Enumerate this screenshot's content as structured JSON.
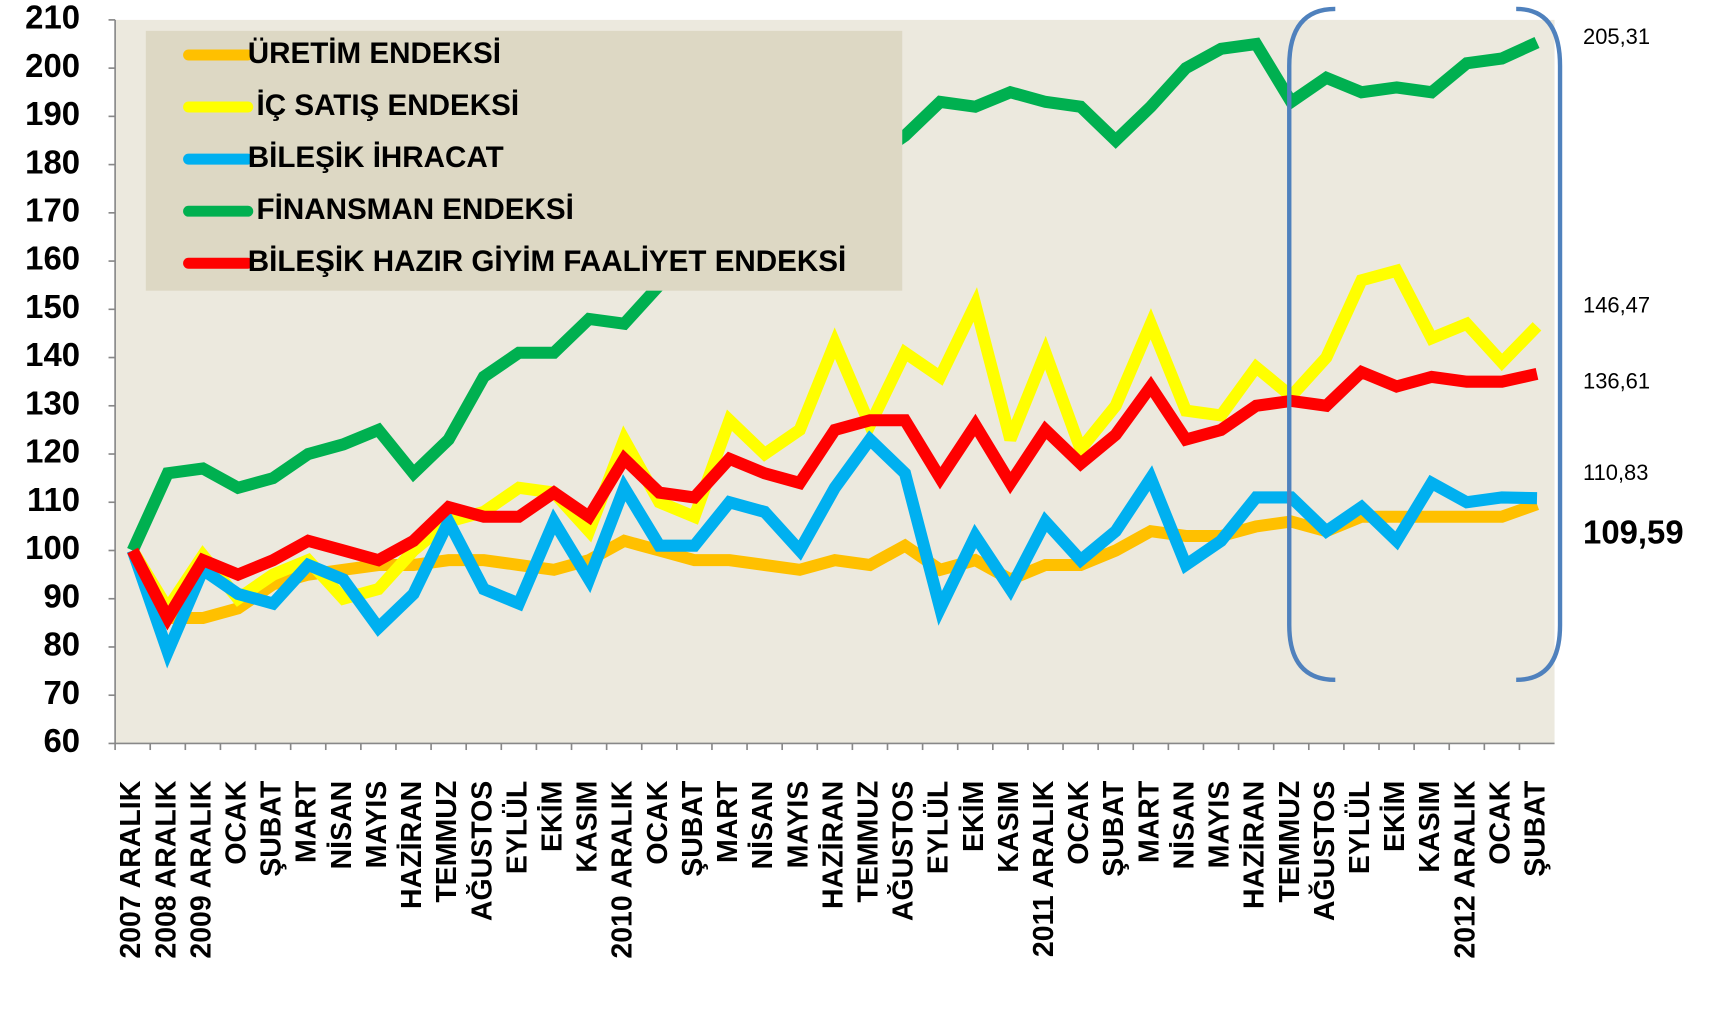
{
  "chart_data": {
    "type": "line",
    "categories": [
      "2007 ARALIK",
      "2008 ARALIK",
      "2009 ARALIK",
      "OCAK",
      "ŞUBAT",
      "MART",
      "NİSAN",
      "MAYIS",
      "HAZİRAN",
      "TEMMUZ",
      "AĞUSTOS",
      "EYLÜL",
      "EKİM",
      "KASIM",
      "2010 ARALIK",
      "OCAK",
      "ŞUBAT",
      "MART",
      "NİSAN",
      "MAYIS",
      "HAZİRAN",
      "TEMMUZ",
      "AĞUSTOS",
      "EYLÜL",
      "EKİM",
      "KASIM",
      "2011 ARALIK",
      "OCAK",
      "ŞUBAT",
      "MART",
      "NİSAN",
      "MAYIS",
      "HAZİRAN",
      "TEMMUZ",
      "AĞUSTOS",
      "EYLÜL",
      "EKİM",
      "KASIM",
      "2012 ARALIK",
      "OCAK",
      "ŞUBAT"
    ],
    "series": [
      {
        "name": "ÜRETİM ENDEKSİ",
        "color": "#FFC000",
        "values": [
          100,
          86,
          86,
          88,
          93,
          95,
          96,
          97,
          97,
          98,
          98,
          97,
          96,
          98,
          102,
          100,
          98,
          98,
          97,
          96,
          98,
          97,
          101,
          96,
          98,
          94,
          97,
          97,
          100,
          104,
          103,
          103,
          105,
          106,
          104,
          107,
          107,
          107,
          107,
          107,
          109.59
        ],
        "value_labels": [
          null,
          null,
          null,
          null,
          null,
          null,
          null,
          null,
          null,
          null,
          null,
          null,
          null,
          null,
          null,
          null,
          null,
          null,
          null,
          null,
          null,
          null,
          null,
          null,
          null,
          null,
          null,
          null,
          null,
          null,
          null,
          null,
          null,
          null,
          null,
          null,
          null,
          null,
          null,
          null,
          "109,59"
        ]
      },
      {
        "name": "İÇ SATIŞ ENDEKSİ",
        "color": "#FFFF00",
        "values": [
          100,
          88,
          99,
          90,
          95,
          98,
          90,
          92,
          100,
          106,
          108,
          113,
          112,
          104,
          123,
          110,
          107,
          127,
          120,
          125,
          143,
          126,
          141,
          136,
          151,
          123,
          141,
          121,
          130,
          147,
          129,
          128,
          138,
          132,
          140,
          156,
          158,
          144,
          147,
          139,
          146.47
        ],
        "value_labels": [
          null,
          null,
          null,
          null,
          null,
          null,
          null,
          null,
          null,
          null,
          null,
          null,
          null,
          null,
          null,
          null,
          null,
          null,
          null,
          null,
          null,
          null,
          null,
          null,
          null,
          null,
          null,
          null,
          null,
          null,
          null,
          null,
          null,
          null,
          null,
          null,
          null,
          null,
          null,
          null,
          "146,47"
        ]
      },
      {
        "name": "BİLEŞİK İHRACAT",
        "color": "#00B0F0",
        "values": [
          100,
          79,
          96,
          91,
          89,
          97,
          94,
          84,
          91,
          106,
          92,
          89,
          106,
          94,
          113,
          101,
          101,
          110,
          108,
          100,
          113,
          123,
          116,
          88,
          103,
          92,
          106,
          98,
          104,
          115,
          97,
          102,
          111,
          111,
          104,
          109,
          102,
          114,
          110,
          111,
          110.83
        ],
        "value_labels": [
          null,
          null,
          null,
          null,
          null,
          null,
          null,
          null,
          null,
          null,
          null,
          null,
          null,
          null,
          null,
          null,
          null,
          null,
          null,
          null,
          null,
          null,
          null,
          null,
          null,
          null,
          null,
          null,
          null,
          null,
          null,
          null,
          null,
          null,
          null,
          null,
          null,
          null,
          null,
          null,
          "110,83"
        ]
      },
      {
        "name": "FİNANSMAN ENDEKSİ",
        "color": "#00B050",
        "values": [
          100,
          116,
          117,
          113,
          115,
          120,
          122,
          125,
          116,
          123,
          136,
          141,
          141,
          148,
          147,
          155,
          162,
          167,
          172,
          176,
          178,
          181,
          186,
          193,
          192,
          195,
          193,
          192,
          185,
          192,
          200,
          204,
          205,
          193,
          198,
          195,
          196,
          195,
          201,
          202,
          205.31
        ],
        "value_labels": [
          null,
          null,
          null,
          null,
          null,
          null,
          null,
          null,
          null,
          null,
          null,
          null,
          null,
          null,
          null,
          null,
          null,
          null,
          null,
          null,
          null,
          null,
          null,
          null,
          null,
          null,
          null,
          null,
          null,
          null,
          null,
          null,
          null,
          null,
          null,
          null,
          null,
          null,
          null,
          null,
          "205,31"
        ]
      },
      {
        "name": "BİLEŞİK HAZIR GİYİM FAALİYET ENDEKSİ",
        "color": "#FF0000",
        "values": [
          100,
          86,
          98,
          95,
          98,
          102,
          100,
          98,
          102,
          109,
          107,
          107,
          112,
          107,
          119,
          112,
          111,
          119,
          116,
          114,
          125,
          127,
          127,
          115,
          126,
          114,
          125,
          118,
          124,
          134,
          123,
          125,
          130,
          131,
          130,
          137,
          134,
          136,
          135,
          135,
          136.61
        ],
        "value_labels": [
          null,
          null,
          null,
          null,
          null,
          null,
          null,
          null,
          null,
          null,
          null,
          null,
          null,
          null,
          null,
          null,
          null,
          null,
          null,
          null,
          null,
          null,
          null,
          null,
          null,
          null,
          null,
          null,
          null,
          null,
          null,
          null,
          null,
          null,
          null,
          null,
          null,
          null,
          null,
          null,
          "136,61"
        ]
      }
    ],
    "ylim": [
      60,
      210
    ],
    "yticks": [
      60,
      70,
      80,
      90,
      100,
      110,
      120,
      130,
      140,
      150,
      160,
      170,
      180,
      190,
      200,
      210
    ]
  }
}
